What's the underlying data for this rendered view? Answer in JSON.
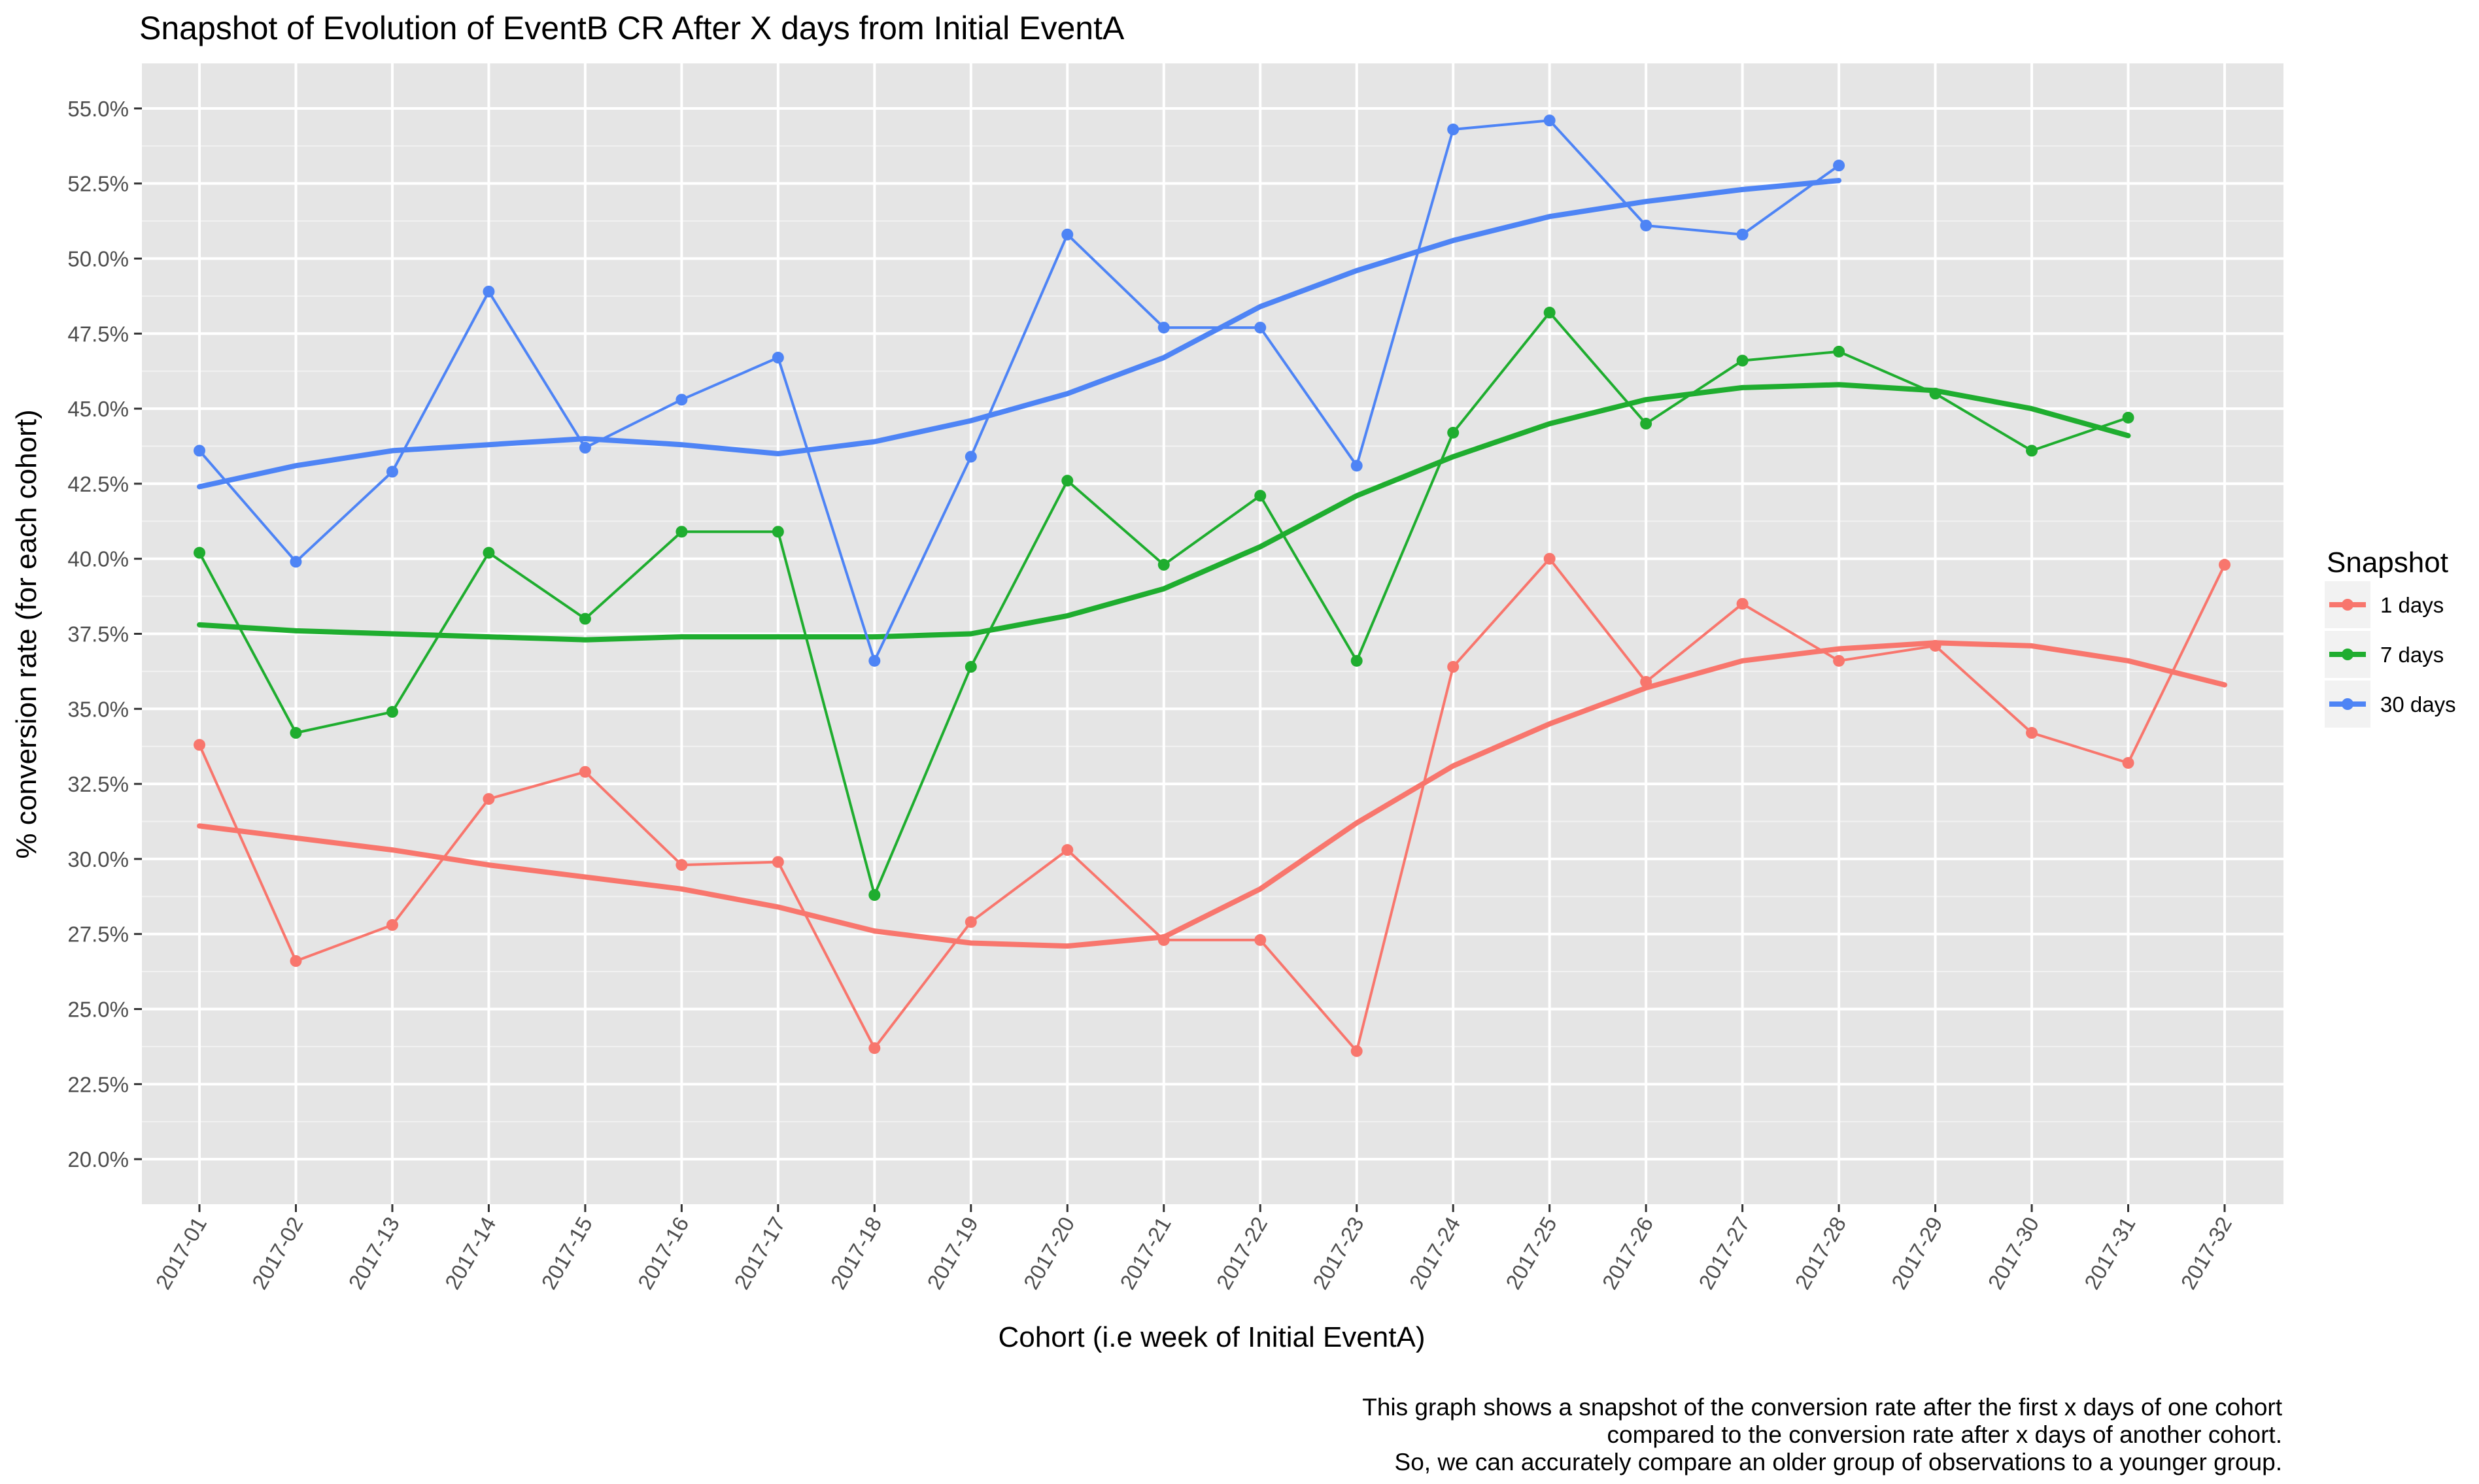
{
  "chart_data": {
    "type": "line",
    "title": "Snapshot of Evolution of  EventB CR After X days from Initial EventA",
    "xlabel": "Cohort (i.e week of Initial EventA)",
    "ylabel": "% conversion rate (for each cohort)",
    "ylim": [
      0.185,
      0.565
    ],
    "y_ticks": [
      0.2,
      0.225,
      0.25,
      0.275,
      0.3,
      0.325,
      0.35,
      0.375,
      0.4,
      0.425,
      0.45,
      0.475,
      0.5,
      0.525,
      0.55
    ],
    "y_tick_labels": [
      "20.0%",
      "22.5%",
      "25.0%",
      "27.5%",
      "30.0%",
      "32.5%",
      "35.0%",
      "37.5%",
      "40.0%",
      "42.5%",
      "45.0%",
      "47.5%",
      "50.0%",
      "52.5%",
      "55.0%"
    ],
    "grid": true,
    "legend": {
      "title": "Snapshot",
      "placement": "right"
    },
    "categories": [
      "2017-01",
      "2017-02",
      "2017-13",
      "2017-14",
      "2017-15",
      "2017-16",
      "2017-17",
      "2017-18",
      "2017-19",
      "2017-20",
      "2017-21",
      "2017-22",
      "2017-23",
      "2017-24",
      "2017-25",
      "2017-26",
      "2017-27",
      "2017-28",
      "2017-29",
      "2017-30",
      "2017-31",
      "2017-32"
    ],
    "series": [
      {
        "name": "1 days",
        "color": "#F8766D",
        "values": [
          0.338,
          0.266,
          0.278,
          0.32,
          0.329,
          0.298,
          0.299,
          0.237,
          0.279,
          0.303,
          0.273,
          0.273,
          0.236,
          0.364,
          0.4,
          0.359,
          0.385,
          0.366,
          0.371,
          0.342,
          0.332,
          0.398
        ],
        "trend": [
          0.311,
          0.307,
          0.303,
          0.298,
          0.294,
          0.29,
          0.284,
          0.276,
          0.272,
          0.271,
          0.274,
          0.29,
          0.312,
          0.331,
          0.345,
          0.357,
          0.366,
          0.37,
          0.372,
          0.371,
          0.366,
          0.358
        ]
      },
      {
        "name": "7 days",
        "color": "#1FAD2F",
        "values": [
          0.402,
          0.342,
          0.349,
          0.402,
          0.38,
          0.409,
          0.409,
          0.288,
          0.364,
          0.426,
          0.398,
          0.421,
          0.366,
          0.442,
          0.482,
          0.445,
          0.466,
          0.469,
          0.455,
          0.436,
          0.447,
          null
        ],
        "trend": [
          0.378,
          0.376,
          0.375,
          0.374,
          0.373,
          0.374,
          0.374,
          0.374,
          0.375,
          0.381,
          0.39,
          0.404,
          0.421,
          0.434,
          0.445,
          0.453,
          0.457,
          0.458,
          0.456,
          0.45,
          0.441,
          null
        ]
      },
      {
        "name": "30 days",
        "color": "#4E84F5",
        "values": [
          0.436,
          0.399,
          0.429,
          0.489,
          0.437,
          0.453,
          0.467,
          0.366,
          0.434,
          0.508,
          0.477,
          0.477,
          0.431,
          0.543,
          0.546,
          0.511,
          0.508,
          0.531,
          null,
          null,
          null,
          null
        ],
        "trend": [
          0.424,
          0.431,
          0.436,
          0.438,
          0.44,
          0.438,
          0.435,
          0.439,
          0.446,
          0.455,
          0.467,
          0.484,
          0.496,
          0.506,
          0.514,
          0.519,
          0.523,
          0.526,
          null,
          null,
          null,
          null
        ]
      }
    ],
    "caption": [
      "This graph shows a snapshot of the conversion rate after the first x days of one cohort",
      "compared to the conversion rate after x days of another cohort.",
      "So, we can accurately compare an older group of observations to a younger group."
    ]
  }
}
